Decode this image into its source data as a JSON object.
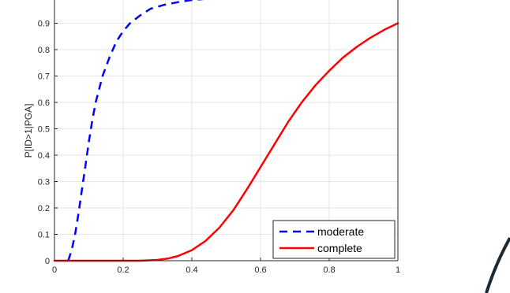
{
  "chart_data": {
    "type": "line",
    "title": "",
    "xlabel": "",
    "ylabel": "P[ID>1|PGA]",
    "xlim": [
      0,
      1
    ],
    "ylim": [
      0,
      1
    ],
    "xticks": [
      0,
      0.2,
      0.4,
      0.6,
      0.8,
      1
    ],
    "xtick_labels": [
      "0",
      "0.2",
      "0.4",
      "0.6",
      "0.8",
      "1"
    ],
    "yticks": [
      0,
      0.1,
      0.2,
      0.3,
      0.4,
      0.5,
      0.6,
      0.7,
      0.8,
      0.9
    ],
    "ytick_labels": [
      "0",
      "0.1",
      "0.2",
      "0.3",
      "0.4",
      "0.5",
      "0.6",
      "0.7",
      "0.8",
      "0.9"
    ],
    "grid": true,
    "legend_position": "bottom-right",
    "series": [
      {
        "name": "moderate",
        "color": "#0000ff",
        "style": "dashed",
        "x": [
          0.04,
          0.05,
          0.06,
          0.07,
          0.08,
          0.09,
          0.1,
          0.11,
          0.12,
          0.14,
          0.16,
          0.18,
          0.2,
          0.22,
          0.25,
          0.28,
          0.32,
          0.36,
          0.4,
          0.45,
          0.5,
          0.55
        ],
        "y": [
          0.0,
          0.04,
          0.1,
          0.18,
          0.27,
          0.36,
          0.45,
          0.53,
          0.6,
          0.7,
          0.77,
          0.83,
          0.87,
          0.9,
          0.93,
          0.955,
          0.97,
          0.98,
          0.988,
          0.993,
          0.997,
          1.0
        ]
      },
      {
        "name": "complete",
        "color": "#ff0000",
        "style": "solid",
        "x": [
          0.0,
          0.1,
          0.2,
          0.25,
          0.3,
          0.33,
          0.36,
          0.4,
          0.44,
          0.48,
          0.52,
          0.56,
          0.6,
          0.64,
          0.68,
          0.72,
          0.76,
          0.8,
          0.84,
          0.88,
          0.92,
          0.96,
          1.0
        ],
        "y": [
          0.0,
          0.0,
          0.0,
          0.0,
          0.003,
          0.008,
          0.018,
          0.04,
          0.075,
          0.125,
          0.19,
          0.27,
          0.355,
          0.44,
          0.525,
          0.6,
          0.665,
          0.72,
          0.77,
          0.81,
          0.845,
          0.875,
          0.9
        ]
      }
    ]
  }
}
